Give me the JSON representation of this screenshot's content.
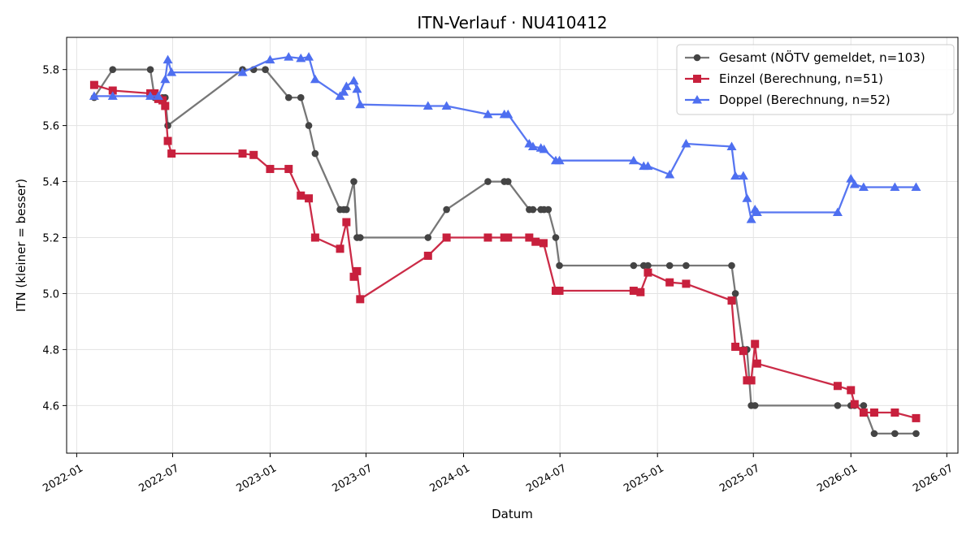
{
  "chart_data": {
    "type": "line",
    "title": "ITN-Verlauf · NU410412",
    "xlabel": "Datum",
    "ylabel": "ITN  (kleiner = besser)",
    "xlim": [
      "2021-12-13",
      "2026-07-22"
    ],
    "ylim": [
      4.43,
      5.915
    ],
    "grid": true,
    "legend_position": "top-right",
    "x_ticks": [
      {
        "date": "2022-01-01",
        "label": "2022-01"
      },
      {
        "date": "2022-07-01",
        "label": "2022-07"
      },
      {
        "date": "2023-01-01",
        "label": "2023-01"
      },
      {
        "date": "2023-07-01",
        "label": "2023-07"
      },
      {
        "date": "2024-01-01",
        "label": "2024-01"
      },
      {
        "date": "2024-07-01",
        "label": "2024-07"
      },
      {
        "date": "2025-01-01",
        "label": "2025-01"
      },
      {
        "date": "2025-07-01",
        "label": "2025-07"
      },
      {
        "date": "2026-01-01",
        "label": "2026-01"
      },
      {
        "date": "2026-07-01",
        "label": "2026-07"
      }
    ],
    "y_ticks": [
      {
        "value": 4.6,
        "label": "4.6"
      },
      {
        "value": 4.8,
        "label": "4.8"
      },
      {
        "value": 5.0,
        "label": "5.0"
      },
      {
        "value": 5.2,
        "label": "5.2"
      },
      {
        "value": 5.4,
        "label": "5.4"
      },
      {
        "value": 5.6,
        "label": "5.6"
      },
      {
        "value": 5.8,
        "label": "5.8"
      }
    ],
    "series": [
      {
        "name": "Gesamt (NÖTV gemeldet, n=103)",
        "color": "#444444",
        "line_color": "#777777",
        "marker": "circle",
        "points": [
          [
            "2022-02-03",
            5.7
          ],
          [
            "2022-03-10",
            5.8
          ],
          [
            "2022-05-20",
            5.8
          ],
          [
            "2022-05-28",
            5.7
          ],
          [
            "2022-06-12",
            5.7
          ],
          [
            "2022-06-17",
            5.7
          ],
          [
            "2022-06-22",
            5.6
          ],
          [
            "2022-11-10",
            5.8
          ],
          [
            "2022-12-01",
            5.8
          ],
          [
            "2022-12-23",
            5.8
          ],
          [
            "2023-02-05",
            5.7
          ],
          [
            "2023-02-28",
            5.7
          ],
          [
            "2023-03-15",
            5.6
          ],
          [
            "2023-03-27",
            5.5
          ],
          [
            "2023-05-13",
            5.3
          ],
          [
            "2023-05-20",
            5.3
          ],
          [
            "2023-05-25",
            5.3
          ],
          [
            "2023-06-08",
            5.4
          ],
          [
            "2023-06-14",
            5.2
          ],
          [
            "2023-06-20",
            5.2
          ],
          [
            "2023-10-26",
            5.2
          ],
          [
            "2023-11-30",
            5.3
          ],
          [
            "2024-02-16",
            5.4
          ],
          [
            "2024-03-18",
            5.4
          ],
          [
            "2024-03-25",
            5.4
          ],
          [
            "2024-05-04",
            5.3
          ],
          [
            "2024-05-11",
            5.3
          ],
          [
            "2024-05-26",
            5.3
          ],
          [
            "2024-06-01",
            5.3
          ],
          [
            "2024-06-09",
            5.3
          ],
          [
            "2024-06-23",
            5.2
          ],
          [
            "2024-06-30",
            5.1
          ],
          [
            "2024-11-17",
            5.1
          ],
          [
            "2024-12-06",
            5.1
          ],
          [
            "2024-12-14",
            5.1
          ],
          [
            "2025-01-24",
            5.1
          ],
          [
            "2025-02-24",
            5.1
          ],
          [
            "2025-05-21",
            5.1
          ],
          [
            "2025-05-28",
            5.0
          ],
          [
            "2025-06-12",
            4.8
          ],
          [
            "2025-06-19",
            4.8
          ],
          [
            "2025-06-27",
            4.6
          ],
          [
            "2025-07-04",
            4.6
          ],
          [
            "2025-12-07",
            4.6
          ],
          [
            "2026-01-01",
            4.6
          ],
          [
            "2026-01-08",
            4.6
          ],
          [
            "2026-01-25",
            4.6
          ],
          [
            "2026-02-14",
            4.5
          ],
          [
            "2026-03-25",
            4.5
          ],
          [
            "2026-05-04",
            4.5
          ]
        ]
      },
      {
        "name": "Einzel (Berechnung, n=51)",
        "color": "#c8203d",
        "line_color": "#c8203d",
        "marker": "square",
        "points": [
          [
            "2022-02-03",
            5.745
          ],
          [
            "2022-03-10",
            5.725
          ],
          [
            "2022-05-20",
            5.715
          ],
          [
            "2022-05-28",
            5.715
          ],
          [
            "2022-06-04",
            5.695
          ],
          [
            "2022-06-12",
            5.69
          ],
          [
            "2022-06-17",
            5.67
          ],
          [
            "2022-06-22",
            5.545
          ],
          [
            "2022-06-29",
            5.5
          ],
          [
            "2022-11-10",
            5.5
          ],
          [
            "2022-12-01",
            5.495
          ],
          [
            "2023-01-01",
            5.445
          ],
          [
            "2023-02-05",
            5.445
          ],
          [
            "2023-02-28",
            5.35
          ],
          [
            "2023-03-15",
            5.34
          ],
          [
            "2023-03-27",
            5.2
          ],
          [
            "2023-05-13",
            5.16
          ],
          [
            "2023-05-25",
            5.255
          ],
          [
            "2023-06-08",
            5.06
          ],
          [
            "2023-06-14",
            5.08
          ],
          [
            "2023-06-20",
            4.98
          ],
          [
            "2023-10-26",
            5.135
          ],
          [
            "2023-11-30",
            5.2
          ],
          [
            "2024-02-16",
            5.2
          ],
          [
            "2024-03-18",
            5.2
          ],
          [
            "2024-03-25",
            5.2
          ],
          [
            "2024-05-04",
            5.2
          ],
          [
            "2024-05-16",
            5.185
          ],
          [
            "2024-05-31",
            5.18
          ],
          [
            "2024-06-23",
            5.01
          ],
          [
            "2024-06-30",
            5.01
          ],
          [
            "2024-11-17",
            5.01
          ],
          [
            "2024-11-30",
            5.005
          ],
          [
            "2024-12-14",
            5.075
          ],
          [
            "2025-01-24",
            5.04
          ],
          [
            "2025-02-24",
            5.035
          ],
          [
            "2025-05-21",
            4.975
          ],
          [
            "2025-05-28",
            4.81
          ],
          [
            "2025-06-12",
            4.795
          ],
          [
            "2025-06-19",
            4.69
          ],
          [
            "2025-06-27",
            4.69
          ],
          [
            "2025-07-04",
            4.82
          ],
          [
            "2025-07-08",
            4.75
          ],
          [
            "2025-12-07",
            4.67
          ],
          [
            "2026-01-01",
            4.655
          ],
          [
            "2026-01-08",
            4.605
          ],
          [
            "2026-01-25",
            4.575
          ],
          [
            "2026-02-14",
            4.575
          ],
          [
            "2026-03-25",
            4.575
          ],
          [
            "2026-05-04",
            4.555
          ]
        ]
      },
      {
        "name": "Doppel (Berechnung, n=52)",
        "color": "#4e6ff0",
        "line_color": "#4e6ff0",
        "marker": "triangle",
        "points": [
          [
            "2022-02-03",
            5.705
          ],
          [
            "2022-03-10",
            5.705
          ],
          [
            "2022-05-20",
            5.705
          ],
          [
            "2022-06-04",
            5.705
          ],
          [
            "2022-06-17",
            5.765
          ],
          [
            "2022-06-22",
            5.835
          ],
          [
            "2022-06-29",
            5.79
          ],
          [
            "2022-11-10",
            5.79
          ],
          [
            "2023-01-01",
            5.835
          ],
          [
            "2023-02-05",
            5.845
          ],
          [
            "2023-02-28",
            5.84
          ],
          [
            "2023-03-15",
            5.845
          ],
          [
            "2023-03-27",
            5.765
          ],
          [
            "2023-05-13",
            5.705
          ],
          [
            "2023-05-20",
            5.72
          ],
          [
            "2023-05-25",
            5.74
          ],
          [
            "2023-06-08",
            5.76
          ],
          [
            "2023-06-14",
            5.73
          ],
          [
            "2023-06-20",
            5.675
          ],
          [
            "2023-10-26",
            5.67
          ],
          [
            "2023-11-30",
            5.67
          ],
          [
            "2024-02-16",
            5.64
          ],
          [
            "2024-03-18",
            5.64
          ],
          [
            "2024-03-25",
            5.64
          ],
          [
            "2024-05-04",
            5.535
          ],
          [
            "2024-05-11",
            5.525
          ],
          [
            "2024-05-26",
            5.52
          ],
          [
            "2024-06-01",
            5.515
          ],
          [
            "2024-06-23",
            5.475
          ],
          [
            "2024-06-30",
            5.475
          ],
          [
            "2024-11-17",
            5.475
          ],
          [
            "2024-12-06",
            5.455
          ],
          [
            "2024-12-14",
            5.455
          ],
          [
            "2025-01-24",
            5.425
          ],
          [
            "2025-02-24",
            5.535
          ],
          [
            "2025-05-21",
            5.525
          ],
          [
            "2025-05-28",
            5.42
          ],
          [
            "2025-06-12",
            5.42
          ],
          [
            "2025-06-19",
            5.34
          ],
          [
            "2025-06-27",
            5.265
          ],
          [
            "2025-07-04",
            5.3
          ],
          [
            "2025-07-08",
            5.29
          ],
          [
            "2025-12-07",
            5.29
          ],
          [
            "2026-01-01",
            5.41
          ],
          [
            "2026-01-08",
            5.39
          ],
          [
            "2026-01-25",
            5.38
          ],
          [
            "2026-03-25",
            5.38
          ],
          [
            "2026-05-04",
            5.38
          ]
        ]
      }
    ]
  }
}
